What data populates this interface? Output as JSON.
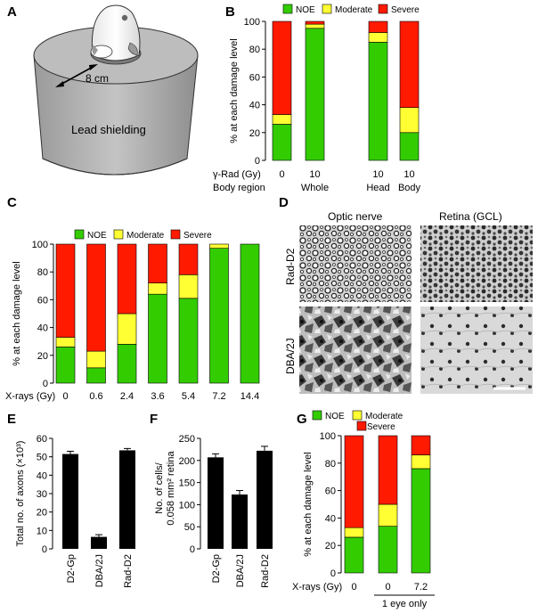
{
  "panels": {
    "A": "A",
    "B": "B",
    "C": "C",
    "D": "D",
    "E": "E",
    "F": "F",
    "G": "G"
  },
  "panel_a": {
    "distance_label": "8 cm",
    "shield_label": "Lead shielding"
  },
  "panel_d": {
    "col_optic": "Optic nerve",
    "col_retina": "Retina (GCL)",
    "row_rad": "Rad-D2",
    "row_dba": "DBA/2J"
  },
  "colors": {
    "NOE": "#33cc00",
    "Moderate": "#ffff33",
    "Severe": "#ff1a00",
    "bar_black": "#000000"
  },
  "chart_data": [
    {
      "id": "B",
      "type": "bar",
      "stacked": true,
      "ylabel": "% at each damage level",
      "ylim": [
        0,
        100
      ],
      "yticks": [
        0,
        20,
        40,
        60,
        80,
        100
      ],
      "legend": [
        "NOE",
        "Moderate",
        "Severe"
      ],
      "row_labels": [
        "γ-Rad (Gy)",
        "Body region"
      ],
      "bars": [
        {
          "x": "0",
          "region": "",
          "NOE": 26,
          "Moderate": 7,
          "Severe": 67
        },
        {
          "x": "10",
          "region": "Whole",
          "NOE": 95,
          "Moderate": 3,
          "Severe": 2
        },
        {
          "x": "10",
          "region": "Head",
          "NOE": 85,
          "Moderate": 7,
          "Severe": 8
        },
        {
          "x": "10",
          "region": "Body",
          "NOE": 20,
          "Moderate": 18,
          "Severe": 62
        }
      ]
    },
    {
      "id": "C",
      "type": "bar",
      "stacked": true,
      "ylabel": "% at each damage level",
      "ylim": [
        0,
        100
      ],
      "yticks": [
        0,
        20,
        40,
        60,
        80,
        100
      ],
      "legend": [
        "NOE",
        "Moderate",
        "Severe"
      ],
      "xlabel": "X-rays (Gy)",
      "categories": [
        "0",
        "0.6",
        "2.4",
        "3.6",
        "5.4",
        "7.2",
        "14.4"
      ],
      "series": [
        {
          "name": "NOE",
          "values": [
            26,
            11,
            28,
            64,
            61,
            97,
            100
          ]
        },
        {
          "name": "Moderate",
          "values": [
            7,
            12,
            22,
            8,
            17,
            3,
            0
          ]
        },
        {
          "name": "Severe",
          "values": [
            67,
            77,
            50,
            28,
            22,
            0,
            0
          ]
        }
      ]
    },
    {
      "id": "E",
      "type": "bar",
      "ylabel": "Total no. of axons (×10³)",
      "ylim": [
        0,
        60
      ],
      "yticks": [
        0,
        10,
        20,
        30,
        40,
        50,
        60
      ],
      "categories": [
        "D2-Gp",
        "DBA/2J",
        "Rad-D2"
      ],
      "values": [
        51.5,
        6.5,
        53.5
      ],
      "errors": [
        1.5,
        1.2,
        1.0
      ]
    },
    {
      "id": "F",
      "type": "bar",
      "ylabel": "No. of cells/ 0.058 mm² retina",
      "ylabel_lines": [
        "No. of cells/",
        "0.058 mm² retina"
      ],
      "ylim": [
        0,
        250
      ],
      "yticks": [
        0,
        50,
        100,
        150,
        200,
        250
      ],
      "categories": [
        "D2-Gp",
        "DBA/2J",
        "Rad-D2"
      ],
      "values": [
        207,
        123,
        222
      ],
      "errors": [
        8,
        9,
        10
      ]
    },
    {
      "id": "G",
      "type": "bar",
      "stacked": true,
      "ylabel": "% at each damage level",
      "ylim": [
        0,
        100
      ],
      "yticks": [
        0,
        20,
        40,
        60,
        80,
        100
      ],
      "legend": [
        "NOE",
        "Moderate",
        "Severe"
      ],
      "xlabel": "X-rays (Gy)",
      "categories": [
        "0",
        "0",
        "7.2"
      ],
      "group_label": "1 eye only",
      "series": [
        {
          "name": "NOE",
          "values": [
            26,
            34,
            76
          ]
        },
        {
          "name": "Moderate",
          "values": [
            7,
            16,
            10
          ]
        },
        {
          "name": "Severe",
          "values": [
            67,
            50,
            14
          ]
        }
      ]
    }
  ]
}
